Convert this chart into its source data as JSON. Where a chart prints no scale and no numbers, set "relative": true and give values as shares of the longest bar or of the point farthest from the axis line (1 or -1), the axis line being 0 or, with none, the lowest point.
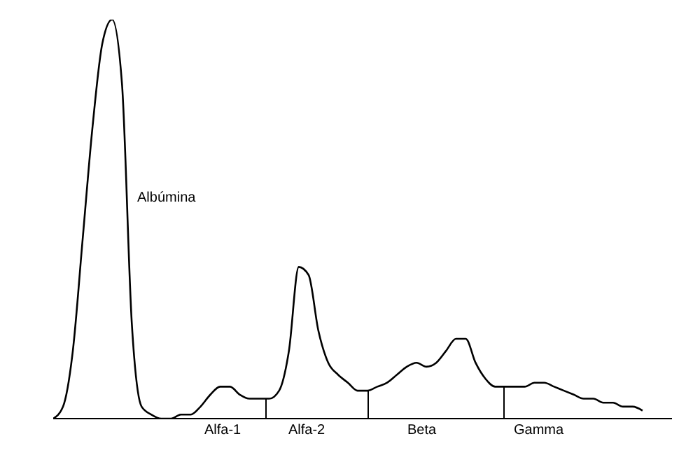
{
  "chart_data": {
    "type": "line",
    "relative": true,
    "categories": [
      null,
      null,
      null,
      null,
      null,
      null,
      null,
      null,
      null,
      null,
      null,
      null,
      null,
      null,
      null,
      null,
      null,
      null,
      null,
      null,
      null,
      null,
      null,
      null,
      null,
      null,
      null,
      null,
      null,
      null,
      null,
      null,
      null,
      null,
      null,
      null,
      null,
      null,
      null,
      null,
      null,
      null,
      null,
      null,
      null,
      null,
      null,
      null,
      null,
      null,
      null,
      null,
      null,
      null,
      null,
      null,
      null,
      null,
      null,
      null,
      null
    ],
    "series": [
      {
        "color": "#000000",
        "values": [
          0.0,
          0.03,
          0.17,
          0.45,
          0.73,
          0.94,
          1.0,
          0.84,
          0.24,
          0.03,
          0.01,
          0.0,
          0.0,
          0.01,
          0.01,
          0.03,
          0.06,
          0.08,
          0.08,
          0.06,
          0.05,
          0.05,
          0.05,
          0.07,
          0.17,
          0.38,
          0.36,
          0.22,
          0.14,
          0.11,
          0.09,
          0.07,
          0.07,
          0.08,
          0.09,
          0.11,
          0.13,
          0.14,
          0.13,
          0.14,
          0.17,
          0.2,
          0.2,
          0.14,
          0.1,
          0.08,
          0.08,
          0.08,
          0.08,
          0.09,
          0.09,
          0.08,
          0.07,
          0.06,
          0.05,
          0.05,
          0.04,
          0.04,
          0.03,
          0.03,
          0.02
        ]
      }
    ],
    "annotations": [
      "Albúmina",
      "Alfa-1",
      "Alfa-2",
      "Beta",
      "Gamma"
    ],
    "grid": false,
    "legend": false,
    "marker": "none",
    "line_style": "solid"
  }
}
